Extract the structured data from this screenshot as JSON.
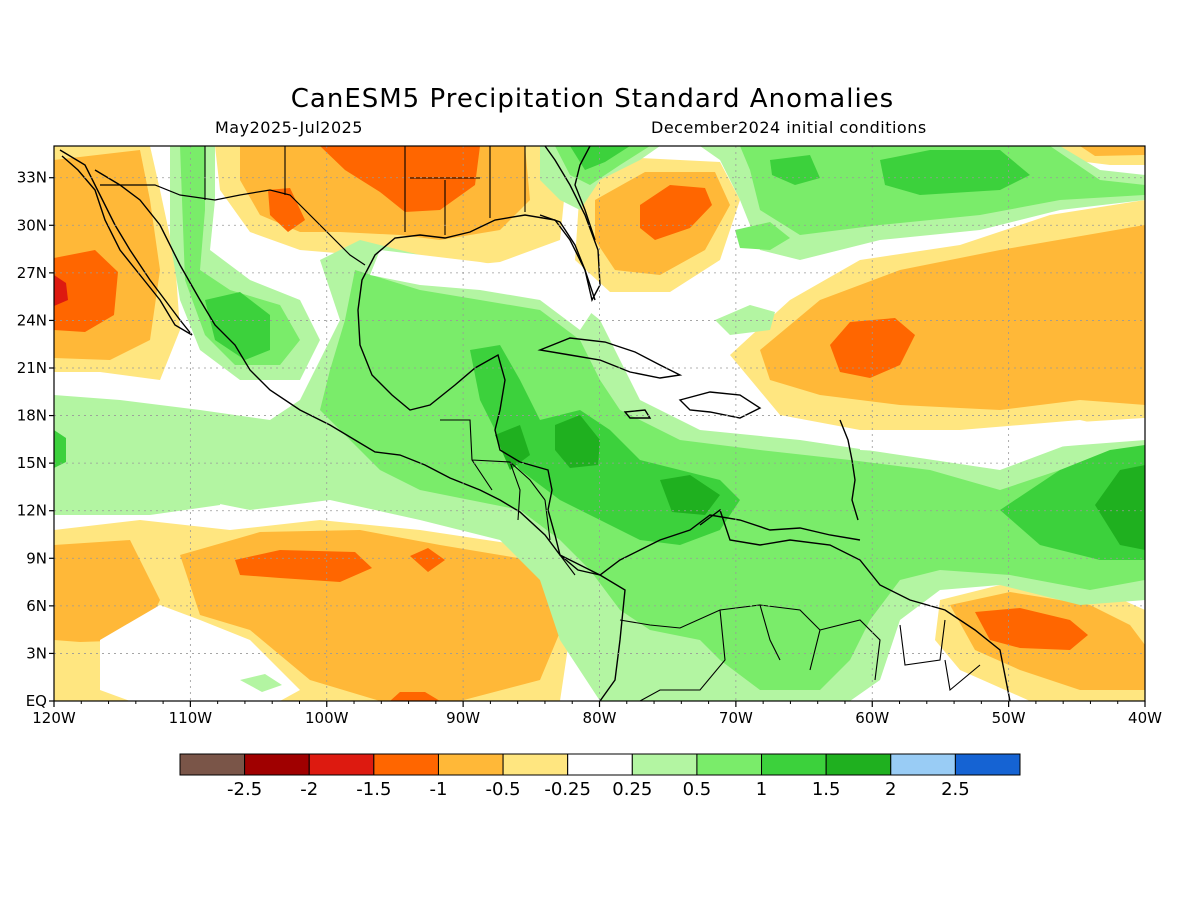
{
  "title": "CanESM5 Precipitation Standard Anomalies",
  "period": "May2025-Jul2025",
  "init": "December2024 initial conditions",
  "map": {
    "lon_range": [
      -120,
      -40
    ],
    "lat_range": [
      0,
      35
    ],
    "lon_ticks": [
      "120W",
      "110W",
      "100W",
      "90W",
      "80W",
      "70W",
      "60W",
      "50W",
      "40W"
    ],
    "lat_ticks": [
      "EQ",
      "3N",
      "6N",
      "9N",
      "12N",
      "15N",
      "18N",
      "21N",
      "24N",
      "27N",
      "30N",
      "33N"
    ],
    "grid": "dotted"
  },
  "colorbar": {
    "colors": [
      "#7a5548",
      "#a00000",
      "#dd1a10",
      "#ff6600",
      "#ffb838",
      "#ffe680",
      "#ffffff",
      "#b3f5a2",
      "#7aec6a",
      "#3cd13c",
      "#1fb01f",
      "#99ccf5",
      "#1563d3"
    ],
    "labels": [
      "-2.5",
      "-2",
      "-1.5",
      "-1",
      "-0.5",
      "-0.25",
      "0.25",
      "0.5",
      "1",
      "1.5",
      "2",
      "2.5"
    ]
  }
}
